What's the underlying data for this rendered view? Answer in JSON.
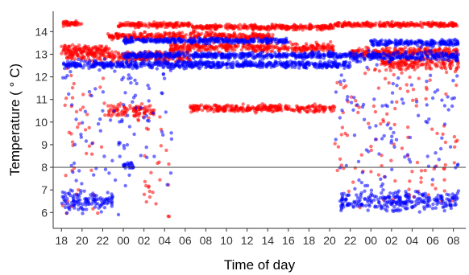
{
  "chart_data": {
    "type": "scatter",
    "title": "",
    "xlabel": "Time of day",
    "ylabel": "Temperature ( ° C)",
    "x_ticks": [
      "18",
      "20",
      "22",
      "00",
      "02",
      "04",
      "06",
      "08",
      "10",
      "12",
      "14",
      "16",
      "18",
      "20",
      "22",
      "00",
      "02",
      "04",
      "06",
      "08"
    ],
    "x_range_hours": [
      17.2,
      57.2
    ],
    "ylim": [
      5.3,
      14.9
    ],
    "y_ticks": [
      6,
      7,
      8,
      9,
      10,
      11,
      12,
      13,
      14
    ],
    "reference_line": {
      "y": 8
    },
    "grid": false,
    "legend": "none",
    "series": [
      {
        "color": "#ff0000",
        "opacity": 0.55,
        "bands": [
          {
            "x_start": 18.0,
            "x_end": 20.0,
            "y": 14.35,
            "spread": 0.08
          },
          {
            "x_start": 23.5,
            "x_end": 30.5,
            "y": 14.3,
            "spread": 0.08
          },
          {
            "x_start": 30.5,
            "x_end": 44.5,
            "y": 14.2,
            "spread": 0.08
          },
          {
            "x_start": 44.5,
            "x_end": 56.5,
            "y": 14.3,
            "spread": 0.08
          },
          {
            "x_start": 18.0,
            "x_end": 22.5,
            "y": 13.2,
            "spread": 0.15
          },
          {
            "x_start": 22.5,
            "x_end": 38.5,
            "y": 13.8,
            "spread": 0.12
          },
          {
            "x_start": 28.5,
            "x_end": 44.5,
            "y": 13.3,
            "spread": 0.15
          },
          {
            "x_start": 46.0,
            "x_end": 56.5,
            "y": 13.1,
            "spread": 0.15
          },
          {
            "x_start": 18.5,
            "x_end": 30.5,
            "y": 12.9,
            "spread": 0.2
          },
          {
            "x_start": 49.0,
            "x_end": 56.5,
            "y": 12.6,
            "spread": 0.2
          },
          {
            "x_start": 22.5,
            "x_end": 27.0,
            "y": 10.5,
            "spread": 0.25
          },
          {
            "x_start": 30.5,
            "x_end": 44.5,
            "y": 10.6,
            "spread": 0.12
          }
        ],
        "scatter_regions": [
          {
            "x_start": 18.0,
            "x_end": 22.5,
            "y_min": 5.8,
            "y_max": 13.0
          },
          {
            "x_start": 26.0,
            "x_end": 28.5,
            "y_min": 5.8,
            "y_max": 10.5
          },
          {
            "x_start": 44.5,
            "x_end": 47.0,
            "y_min": 6.0,
            "y_max": 12.0
          },
          {
            "x_start": 47.0,
            "x_end": 56.5,
            "y_min": 6.5,
            "y_max": 12.5
          }
        ]
      },
      {
        "color": "#0000ff",
        "opacity": 0.55,
        "bands": [
          {
            "x_start": 24.0,
            "x_end": 40.0,
            "y": 13.6,
            "spread": 0.08
          },
          {
            "x_start": 48.0,
            "x_end": 56.5,
            "y": 13.5,
            "spread": 0.1
          },
          {
            "x_start": 24.0,
            "x_end": 46.0,
            "y": 12.95,
            "spread": 0.1
          },
          {
            "x_start": 18.0,
            "x_end": 46.0,
            "y": 12.55,
            "spread": 0.12
          },
          {
            "x_start": 46.0,
            "x_end": 56.5,
            "y": 12.9,
            "spread": 0.15
          },
          {
            "x_start": 18.0,
            "x_end": 23.0,
            "y": 6.5,
            "spread": 0.3
          },
          {
            "x_start": 24.0,
            "x_end": 25.0,
            "y": 8.1,
            "spread": 0.1
          },
          {
            "x_start": 45.0,
            "x_end": 56.5,
            "y": 6.5,
            "spread": 0.3
          }
        ],
        "scatter_regions": [
          {
            "x_start": 18.0,
            "x_end": 24.0,
            "y_min": 5.8,
            "y_max": 13.0
          },
          {
            "x_start": 24.0,
            "x_end": 29.0,
            "y_min": 6.5,
            "y_max": 13.0
          },
          {
            "x_start": 44.5,
            "x_end": 56.5,
            "y_min": 5.8,
            "y_max": 13.0
          }
        ]
      }
    ]
  }
}
